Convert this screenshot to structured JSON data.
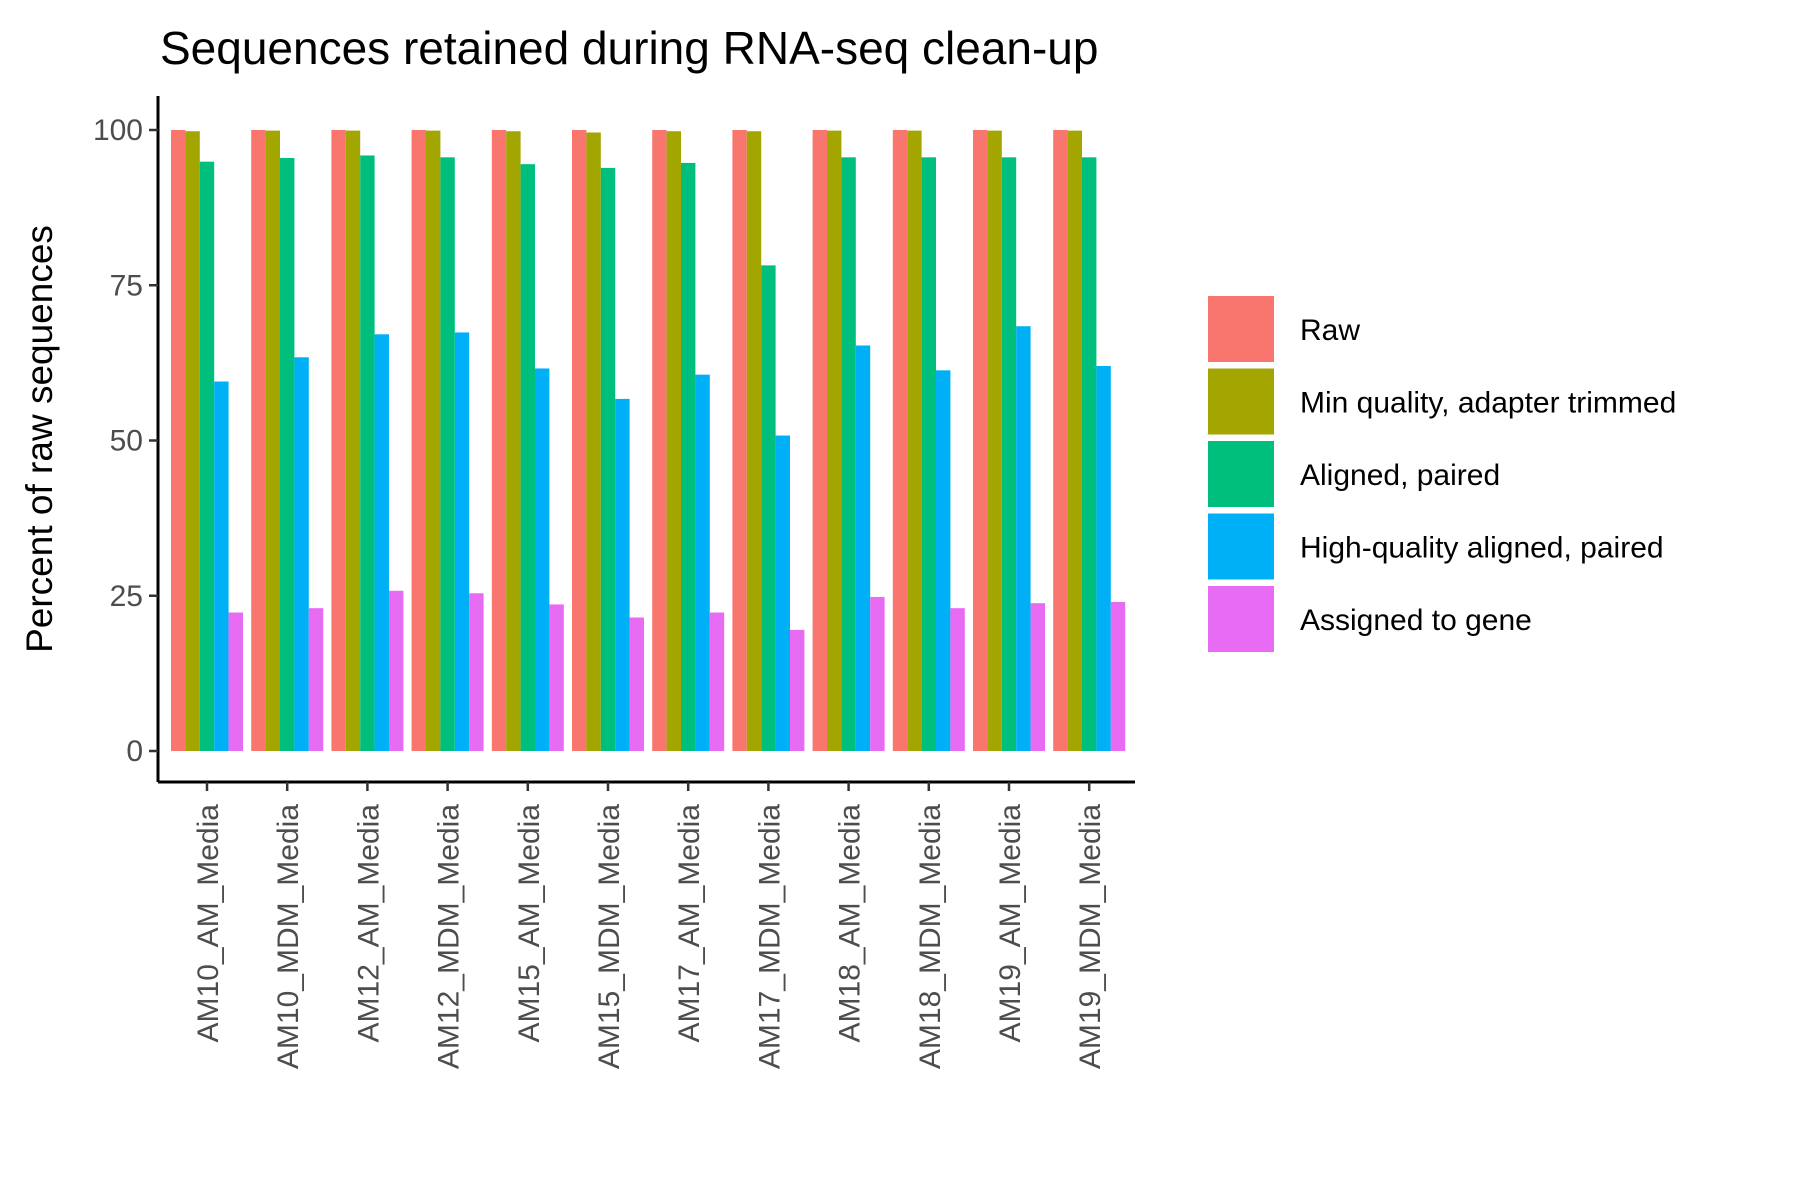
{
  "chart_data": {
    "type": "bar",
    "title": "Sequences retained during RNA-seq clean-up",
    "xlabel": "",
    "ylabel": "Percent of raw sequences",
    "ylim": [
      0,
      100
    ],
    "yticks": [
      0,
      25,
      50,
      75,
      100
    ],
    "grid": false,
    "legend_position": "right",
    "categories": [
      "AM10_AM_Media",
      "AM10_MDM_Media",
      "AM12_AM_Media",
      "AM12_MDM_Media",
      "AM15_AM_Media",
      "AM15_MDM_Media",
      "AM17_AM_Media",
      "AM17_MDM_Media",
      "AM18_AM_Media",
      "AM18_MDM_Media",
      "AM19_AM_Media",
      "AM19_MDM_Media"
    ],
    "series": [
      {
        "name": "Raw",
        "color": "#F8766D",
        "values": [
          100,
          100,
          100,
          100,
          100,
          100,
          100,
          100,
          100,
          100,
          100,
          100
        ]
      },
      {
        "name": "Min quality, adapter trimmed",
        "color": "#A3A500",
        "values": [
          99.8,
          99.9,
          99.9,
          99.9,
          99.8,
          99.6,
          99.8,
          99.8,
          99.9,
          99.9,
          99.9,
          99.9
        ]
      },
      {
        "name": "Aligned, paired",
        "color": "#00BF7D",
        "values": [
          94.9,
          95.5,
          95.9,
          95.6,
          94.5,
          93.9,
          94.7,
          78.2,
          95.6,
          95.6,
          95.6,
          95.6
        ]
      },
      {
        "name": "High-quality aligned, paired",
        "color": "#00B0F6",
        "values": [
          59.5,
          63.4,
          67.1,
          67.4,
          61.6,
          56.7,
          60.6,
          50.8,
          65.3,
          61.3,
          68.4,
          62.0
        ]
      },
      {
        "name": "Assigned to gene",
        "color": "#E76BF3",
        "values": [
          22.3,
          23.0,
          25.8,
          25.4,
          23.6,
          21.5,
          22.3,
          19.5,
          24.8,
          23.0,
          23.8,
          24.0
        ]
      }
    ]
  }
}
